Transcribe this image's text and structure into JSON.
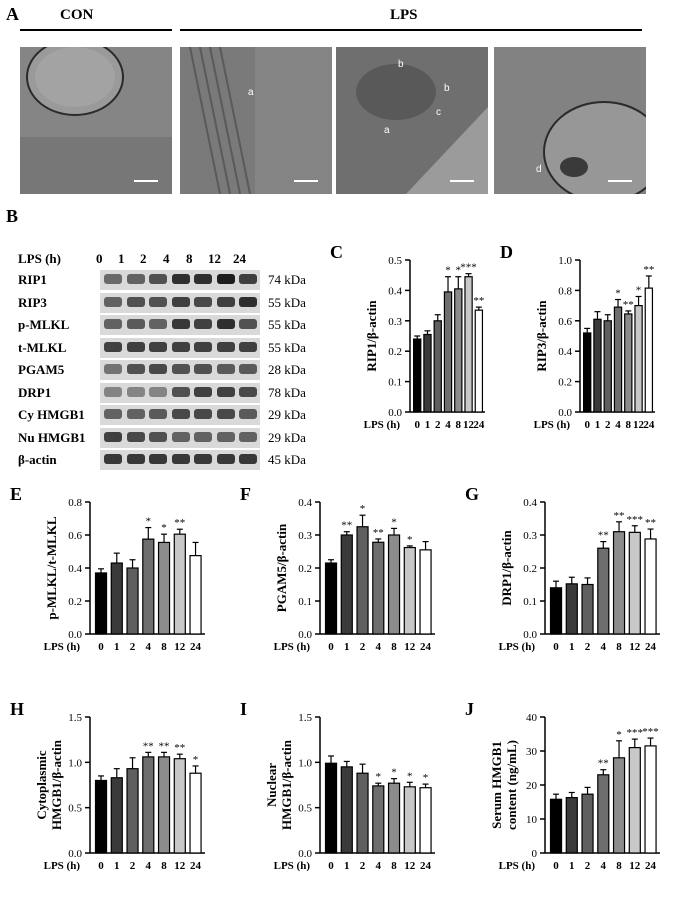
{
  "panel_a": {
    "letter": "A",
    "group_con": "CON",
    "group_lps": "LPS",
    "arrows": [
      {
        "label": "a"
      },
      {
        "label": "b"
      },
      {
        "label": "b"
      },
      {
        "label": "c"
      },
      {
        "label": "a"
      },
      {
        "label": "d"
      }
    ]
  },
  "panel_b": {
    "letter": "B",
    "lps_header": "LPS (h)",
    "timepoints": [
      "0",
      "1",
      "2",
      "4",
      "8",
      "12",
      "24"
    ],
    "rows": [
      {
        "name": "RIP1",
        "kda": "74 kDa"
      },
      {
        "name": "RIP3",
        "kda": "55 kDa"
      },
      {
        "name": "p-MLKL",
        "kda": "55 kDa"
      },
      {
        "name": "t-MLKL",
        "kda": "55 kDa"
      },
      {
        "name": "PGAM5",
        "kda": "28 kDa"
      },
      {
        "name": "DRP1",
        "kda": "78 kDa"
      },
      {
        "name": "Cy HMGB1",
        "kda": "29 kDa"
      },
      {
        "name": "Nu HMGB1",
        "kda": "29 kDa"
      },
      {
        "name": "β-actin",
        "kda": "45 kDa"
      }
    ]
  },
  "colors": {
    "bar_fills": [
      "#000000",
      "#3a3a3a",
      "#5f5f5f",
      "#6e6e6e",
      "#8c8c8c",
      "#c8c8c8",
      "#ffffff"
    ]
  },
  "chart_data": [
    {
      "id": "C",
      "type": "bar",
      "letter": "C",
      "ylabel": "RIP1/β-actin",
      "xlabel": "LPS (h)",
      "categories": [
        "0",
        "1",
        "2",
        "4",
        "8",
        "12",
        "24"
      ],
      "values": [
        0.24,
        0.255,
        0.3,
        0.395,
        0.405,
        0.445,
        0.335
      ],
      "errors": [
        0.01,
        0.012,
        0.02,
        0.05,
        0.04,
        0.01,
        0.01
      ],
      "sig": [
        "",
        "",
        "",
        "*",
        "*",
        "***",
        "**"
      ],
      "ylim": [
        0,
        0.5
      ],
      "yticks": [
        "0.0",
        "0.1",
        "0.2",
        "0.3",
        "0.4",
        "0.5"
      ]
    },
    {
      "id": "D",
      "type": "bar",
      "letter": "D",
      "ylabel": "RIP3/β-actin",
      "xlabel": "LPS (h)",
      "categories": [
        "0",
        "1",
        "2",
        "4",
        "8",
        "12",
        "24"
      ],
      "values": [
        0.52,
        0.61,
        0.6,
        0.69,
        0.645,
        0.7,
        0.815
      ],
      "errors": [
        0.03,
        0.05,
        0.04,
        0.05,
        0.02,
        0.06,
        0.08
      ],
      "sig": [
        "",
        "",
        "",
        "*",
        "**",
        "*",
        "**"
      ],
      "ylim": [
        0,
        1.0
      ],
      "yticks": [
        "0.0",
        "0.2",
        "0.4",
        "0.6",
        "0.8",
        "1.0"
      ]
    },
    {
      "id": "E",
      "type": "bar",
      "letter": "E",
      "ylabel": "p-MLKL/t-MLKL",
      "xlabel": "LPS (h)",
      "categories": [
        "0",
        "1",
        "2",
        "4",
        "8",
        "12",
        "24"
      ],
      "values": [
        0.37,
        0.43,
        0.4,
        0.575,
        0.555,
        0.605,
        0.475
      ],
      "errors": [
        0.025,
        0.06,
        0.05,
        0.07,
        0.05,
        0.03,
        0.08
      ],
      "sig": [
        "",
        "",
        "",
        "*",
        "*",
        "**",
        ""
      ],
      "ylim": [
        0,
        0.8
      ],
      "yticks": [
        "0.0",
        "0.2",
        "0.4",
        "0.6",
        "0.8"
      ]
    },
    {
      "id": "F",
      "type": "bar",
      "letter": "F",
      "ylabel": "PGAM5/β-actin",
      "xlabel": "LPS (h)",
      "categories": [
        "0",
        "1",
        "2",
        "4",
        "8",
        "12",
        "24"
      ],
      "values": [
        0.215,
        0.3,
        0.325,
        0.278,
        0.3,
        0.262,
        0.255
      ],
      "errors": [
        0.01,
        0.01,
        0.035,
        0.01,
        0.02,
        0.005,
        0.025
      ],
      "sig": [
        "",
        "**",
        "*",
        "**",
        "*",
        "*",
        ""
      ],
      "ylim": [
        0,
        0.4
      ],
      "yticks": [
        "0.0",
        "0.1",
        "0.2",
        "0.3",
        "0.4"
      ]
    },
    {
      "id": "G",
      "type": "bar",
      "letter": "G",
      "ylabel": "DRP1/β-actin",
      "xlabel": "LPS (h)",
      "categories": [
        "0",
        "1",
        "2",
        "4",
        "8",
        "12",
        "24"
      ],
      "values": [
        0.14,
        0.152,
        0.15,
        0.26,
        0.31,
        0.308,
        0.288
      ],
      "errors": [
        0.02,
        0.02,
        0.02,
        0.02,
        0.03,
        0.02,
        0.03
      ],
      "sig": [
        "",
        "",
        "",
        "**",
        "**",
        "***",
        "**"
      ],
      "ylim": [
        0,
        0.4
      ],
      "yticks": [
        "0.0",
        "0.1",
        "0.2",
        "0.3",
        "0.4"
      ]
    },
    {
      "id": "H",
      "type": "bar",
      "letter": "H",
      "ylabel": "Cytoplasmic HMGB1/β-actin",
      "xlabel": "LPS (h)",
      "categories": [
        "0",
        "1",
        "2",
        "4",
        "8",
        "12",
        "24"
      ],
      "values": [
        0.8,
        0.83,
        0.93,
        1.06,
        1.06,
        1.04,
        0.88
      ],
      "errors": [
        0.05,
        0.1,
        0.12,
        0.05,
        0.05,
        0.05,
        0.08
      ],
      "sig": [
        "",
        "",
        "",
        "**",
        "**",
        "**",
        "*"
      ],
      "ylim": [
        0,
        1.5
      ],
      "yticks": [
        "0.0",
        "0.5",
        "1.0",
        "1.5"
      ]
    },
    {
      "id": "I",
      "type": "bar",
      "letter": "I",
      "ylabel": "Nuclear HMGB1/β-actin",
      "xlabel": "LPS (h)",
      "categories": [
        "0",
        "1",
        "2",
        "4",
        "8",
        "12",
        "24"
      ],
      "values": [
        0.99,
        0.95,
        0.88,
        0.74,
        0.77,
        0.73,
        0.72
      ],
      "errors": [
        0.08,
        0.06,
        0.1,
        0.03,
        0.05,
        0.05,
        0.04
      ],
      "sig": [
        "",
        "",
        "",
        "*",
        "*",
        "*",
        "*"
      ],
      "ylim": [
        0,
        1.5
      ],
      "yticks": [
        "0.0",
        "0.5",
        "1.0",
        "1.5"
      ]
    },
    {
      "id": "J",
      "type": "bar",
      "letter": "J",
      "ylabel": "Serum HMGB1 content (ng/mL)",
      "xlabel": "LPS (h)",
      "categories": [
        "0",
        "1",
        "2",
        "4",
        "8",
        "12",
        "24"
      ],
      "values": [
        15.8,
        16.3,
        17.3,
        23.0,
        28.0,
        31.0,
        31.5
      ],
      "errors": [
        1.5,
        1.5,
        2.0,
        1.5,
        5.0,
        2.5,
        2.3
      ],
      "sig": [
        "",
        "",
        "",
        "**",
        "*",
        "***",
        "***"
      ],
      "ylim": [
        0,
        40
      ],
      "yticks": [
        "0",
        "10",
        "20",
        "30",
        "40"
      ]
    }
  ]
}
